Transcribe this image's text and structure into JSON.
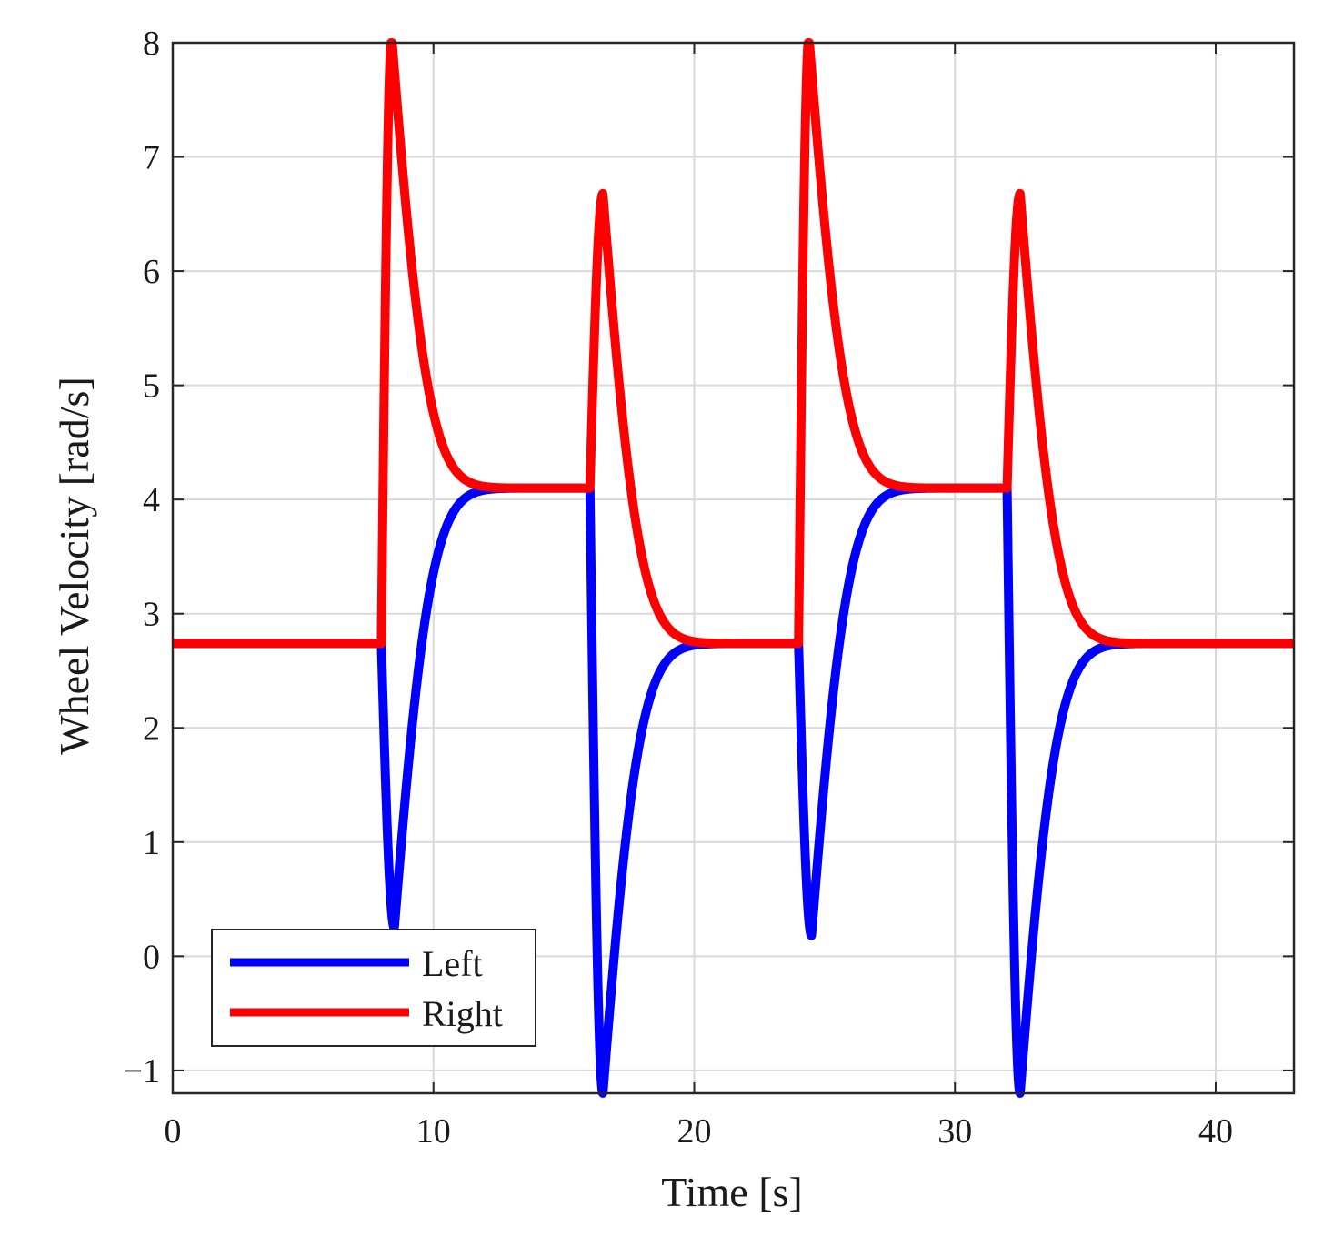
{
  "chart_data": {
    "type": "line",
    "title": "",
    "xlabel": "Time [s]",
    "ylabel": "Wheel Velocity [rad/s]",
    "xlim": [
      0,
      43
    ],
    "ylim": [
      -1.2,
      8
    ],
    "grid": true,
    "legend_position": "bottom-left",
    "x_ticks": [
      0,
      10,
      20,
      30,
      40
    ],
    "x_tick_labels": [
      "0",
      "10",
      "20",
      "30",
      "40"
    ],
    "y_ticks": [
      -1,
      0,
      1,
      2,
      3,
      4,
      5,
      6,
      7,
      8
    ],
    "y_tick_labels": [
      "−1",
      "0",
      "1",
      "2",
      "3",
      "4",
      "5",
      "6",
      "7",
      "8"
    ],
    "baseline_value": 2.74,
    "steady_value": 4.1,
    "series": [
      {
        "name": "Left",
        "color": "#0000ff",
        "segments": [
          {
            "type": "const",
            "t0": 0,
            "t1": 8,
            "v": 2.74
          },
          {
            "type": "dip",
            "t0": 8,
            "t1": 16,
            "start": 2.74,
            "end": 4.1,
            "extreme": 0.25,
            "t_peak": 8.5
          },
          {
            "type": "dip",
            "t0": 16,
            "t1": 24,
            "start": 4.1,
            "end": 2.74,
            "extreme": -1.2,
            "t_peak": 16.5
          },
          {
            "type": "dip",
            "t0": 24,
            "t1": 32,
            "start": 2.74,
            "end": 4.1,
            "extreme": 0.18,
            "t_peak": 24.5
          },
          {
            "type": "dip",
            "t0": 32,
            "t1": 43,
            "start": 4.1,
            "end": 2.74,
            "extreme": -1.2,
            "t_peak": 32.5
          }
        ]
      },
      {
        "name": "Right",
        "color": "#ff0000",
        "segments": [
          {
            "type": "const",
            "t0": 0,
            "t1": 8,
            "v": 2.74
          },
          {
            "type": "spike",
            "t0": 8,
            "t1": 16,
            "start": 2.74,
            "end": 4.1,
            "extreme": 8.05,
            "t_peak": 8.4
          },
          {
            "type": "spike",
            "t0": 16,
            "t1": 24,
            "start": 4.1,
            "end": 2.74,
            "extreme": 6.68,
            "t_peak": 16.5
          },
          {
            "type": "spike",
            "t0": 24,
            "t1": 32,
            "start": 2.74,
            "end": 4.1,
            "extreme": 8.05,
            "t_peak": 24.4
          },
          {
            "type": "spike",
            "t0": 32,
            "t1": 43,
            "start": 4.1,
            "end": 2.74,
            "extreme": 6.68,
            "t_peak": 32.5
          }
        ]
      }
    ],
    "legend": [
      "Left",
      "Right"
    ]
  }
}
